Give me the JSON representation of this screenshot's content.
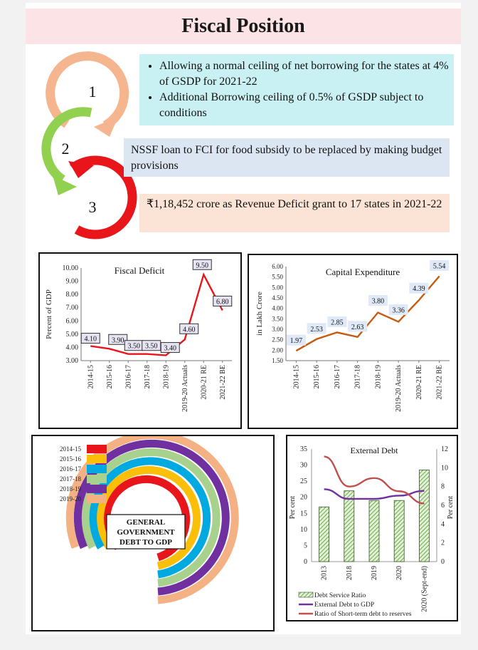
{
  "header": {
    "title": "Fiscal Position"
  },
  "steps": [
    {
      "number": "1",
      "color": "#f5b58e",
      "bullets": [
        "Allowing a normal ceiling of net borrowing for the states at 4% of GSDP for 2021-22",
        "Additional Borrowing ceiling of 0.5% of GSDP subject to conditions"
      ]
    },
    {
      "number": "2",
      "color": "#92d050",
      "text": "NSSF loan to FCI for food subsidy to be replaced by making budget provisions"
    },
    {
      "number": "3",
      "color": "#e8161b",
      "text": "₹1,18,452 crore as Revenue Deficit grant  to 17 states in 2021-22"
    }
  ],
  "chart_data": [
    {
      "id": "fiscal_deficit",
      "type": "line",
      "title": "Fiscal Deficit",
      "ylabel": "Percent of GDP",
      "xlabel": "",
      "categories": [
        "2014-15",
        "2015-16",
        "2016-17",
        "2017-18",
        "2018-19",
        "2019-20 Actuals",
        "2020-21 RE",
        "2021-22 BE"
      ],
      "values": [
        4.1,
        3.9,
        3.5,
        3.5,
        3.4,
        4.6,
        9.5,
        6.8
      ],
      "labels": [
        "4.10",
        "3.90",
        "3.50",
        "3.50",
        "3.40",
        "4.60",
        "9.50",
        "6.80"
      ],
      "ylim": [
        3.0,
        10.0
      ],
      "yticks": [
        "3.00",
        "4.00",
        "5.00",
        "6.00",
        "7.00",
        "8.00",
        "9.00",
        "10.00"
      ],
      "line_color": "#e8161b",
      "grid": false
    },
    {
      "id": "capital_expenditure",
      "type": "line",
      "title": "Capital Expenditure",
      "ylabel": "in Lakh Crore",
      "xlabel": "",
      "categories": [
        "2014-15",
        "2015-16",
        "2016-17",
        "2017-18",
        "2018-19",
        "2019-20 Actuals",
        "2020-21 RE",
        "2021-22 BE"
      ],
      "values": [
        1.97,
        2.53,
        2.85,
        2.63,
        3.8,
        3.36,
        4.39,
        5.54
      ],
      "labels": [
        "1.97",
        "2.53",
        "2.85",
        "2.63",
        "3.80",
        "3.36",
        "4.39",
        "5.54"
      ],
      "ylim": [
        1.5,
        6.0
      ],
      "yticks": [
        "1.50",
        "2.00",
        "2.50",
        "3.00",
        "3.50",
        "4.00",
        "4.50",
        "5.00",
        "5.50",
        "6.00"
      ],
      "line_color": "#c55a11",
      "grid": false
    },
    {
      "id": "general_government_debt",
      "type": "radial-bar",
      "title": "GENERAL GOVERNMENT DEBT TO GDP",
      "categories": [
        "2014-15",
        "2015-16",
        "2016-17",
        "2017-18",
        "2018-19",
        "2019-20"
      ],
      "colors": [
        "#e8161b",
        "#fbbf0a",
        "#00a9e0",
        "#a9d18e",
        "#7030a0",
        "#f4b183"
      ],
      "legend_position": "top-left"
    },
    {
      "id": "external_debt",
      "type": "bar-line",
      "title": "External Debt",
      "categories": [
        "2013",
        "2018",
        "2019",
        "2020",
        "2020 (Sept-end)"
      ],
      "ylabel_left": "Per cent",
      "ylabel_right": "Per cent",
      "ylim_left": [
        0,
        35
      ],
      "ylim_right": [
        0,
        12
      ],
      "yticks_left": [
        "0",
        "5",
        "10",
        "15",
        "20",
        "25",
        "30",
        "35"
      ],
      "yticks_right": [
        "0",
        "2",
        "4",
        "6",
        "8",
        "10",
        "12"
      ],
      "series": [
        {
          "name": "Debt Service Ratio",
          "kind": "bar",
          "axis": "left",
          "color": "#70ad47",
          "values": [
            17,
            22,
            19,
            19,
            28.5
          ]
        },
        {
          "name": "External Debt to GDP",
          "kind": "line",
          "axis": "left",
          "color": "#7030a0",
          "values": [
            22.5,
            19.5,
            19.5,
            20.5,
            22
          ]
        },
        {
          "name": "Ratio of Short-term debt to reserves",
          "kind": "line",
          "axis": "right",
          "color": "#c0504d",
          "values": [
            11.2,
            8,
            8.9,
            7.5,
            6.2
          ]
        }
      ],
      "legend_position": "bottom"
    }
  ]
}
